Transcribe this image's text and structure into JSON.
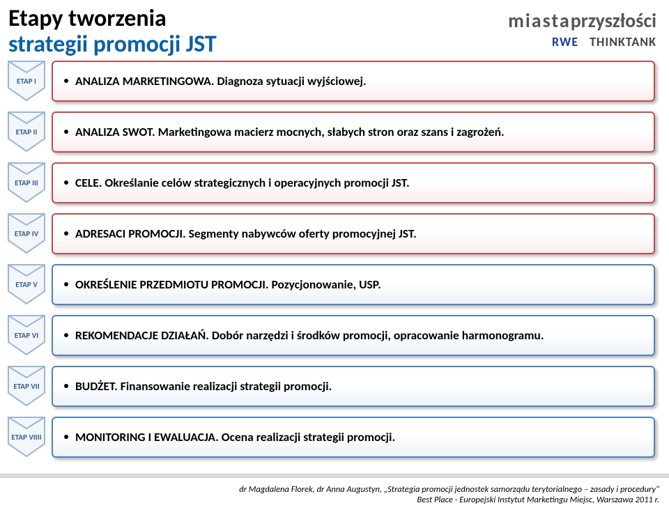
{
  "title": {
    "line1": "Etapy tworzenia",
    "line2": "strategii promocji JST"
  },
  "logos": {
    "main_part1": "miasta",
    "main_part2": "przyszłości",
    "sub1": "RWE",
    "sub2": "THINKTANK"
  },
  "chevron": {
    "fill": "#f3f6fb",
    "stroke": "#9bb6d6",
    "label_color": "#365f91"
  },
  "colors": {
    "red_border": "#c84a4a",
    "blue_border": "#4f81bd"
  },
  "stages": [
    {
      "label": "ETAP I",
      "color": "red",
      "text": "ANALIZA MARKETINGOWA. Diagnoza sytuacji wyjściowej."
    },
    {
      "label": "ETAP II",
      "color": "red",
      "text": "ANALIZA SWOT. Marketingowa macierz mocnych, słabych stron oraz szans i zagrożeń."
    },
    {
      "label": "ETAP III",
      "color": "red",
      "text": "CELE. Określanie celów strategicznych i operacyjnych promocji JST."
    },
    {
      "label": "ETAP IV",
      "color": "red",
      "text": "ADRESACI PROMOCJI. Segmenty nabywców oferty promocyjnej JST."
    },
    {
      "label": "ETAP V",
      "color": "blue",
      "text": "OKREŚLENIE PRZEDMIOTU PROMOCJI. Pozycjonowanie, USP."
    },
    {
      "label": "ETAP VI",
      "color": "blue",
      "text": "REKOMENDACJE DZIAŁAŃ. Dobór narzędzi i środków promocji, opracowanie harmonogramu."
    },
    {
      "label": "ETAP VII",
      "color": "blue",
      "text": "BUDŻET. Finansowanie realizacji strategii promocji."
    },
    {
      "label": "ETAP VIIII",
      "color": "blue",
      "text": "MONITORING I EWALUACJA. Ocena realizacji strategii promocji."
    }
  ],
  "footer": {
    "line1": "dr Magdalena Florek, dr Anna Augustyn, „Strategia promocji jednostek samorządu terytorialnego – zasady i procedury\"",
    "line2": "Best Place - Europejski Instytut Marketingu Miejsc, Warszawa 2011 r."
  }
}
